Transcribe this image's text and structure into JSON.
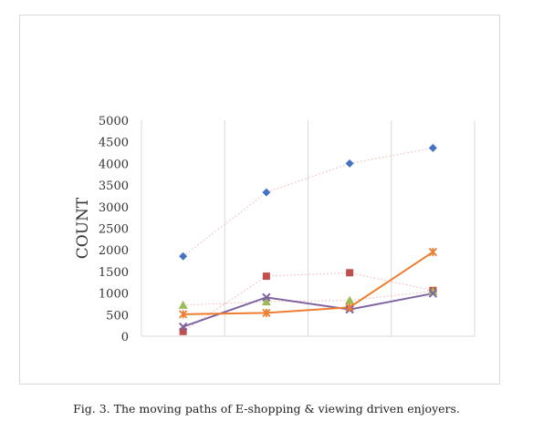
{
  "caption": "Fig. 3. The moving paths of E-shopping & viewing driven enjoyers.",
  "chart_data": {
    "type": "line",
    "title": "",
    "xlabel": "",
    "ylabel": "COUNT",
    "ylim": [
      0,
      5000
    ],
    "y_ticks": [
      "0",
      "500",
      "1000",
      "1500",
      "2000",
      "2500",
      "3000",
      "3500",
      "4000",
      "4500",
      "5000"
    ],
    "categories": [
      "",
      "",
      "",
      ""
    ],
    "grid": "vertical",
    "legend": "none",
    "series": [
      {
        "color": "#4472c4",
        "line_color": "#f4b6b6",
        "line_style": "dotted",
        "marker": "diamond",
        "values": [
          1850,
          3330,
          4000,
          4360
        ]
      },
      {
        "color": "#c0504d",
        "line_color": "#f4b6b6",
        "line_style": "dotted",
        "marker": "square",
        "values": [
          110,
          1390,
          1470,
          1060
        ]
      },
      {
        "color": "#9bbb59",
        "line_color": "#f4b6b6",
        "line_style": "dotted",
        "marker": "triangle",
        "values": [
          720,
          800,
          830,
          1040
        ]
      },
      {
        "color": "#8064a2",
        "line_color": "#8064a2",
        "line_style": "solid",
        "marker": "x",
        "values": [
          220,
          900,
          620,
          990
        ]
      },
      {
        "color": "#ed7d31",
        "line_color": "#ed7d31",
        "line_style": "solid",
        "marker": "star",
        "values": [
          510,
          540,
          670,
          1950
        ]
      }
    ]
  }
}
